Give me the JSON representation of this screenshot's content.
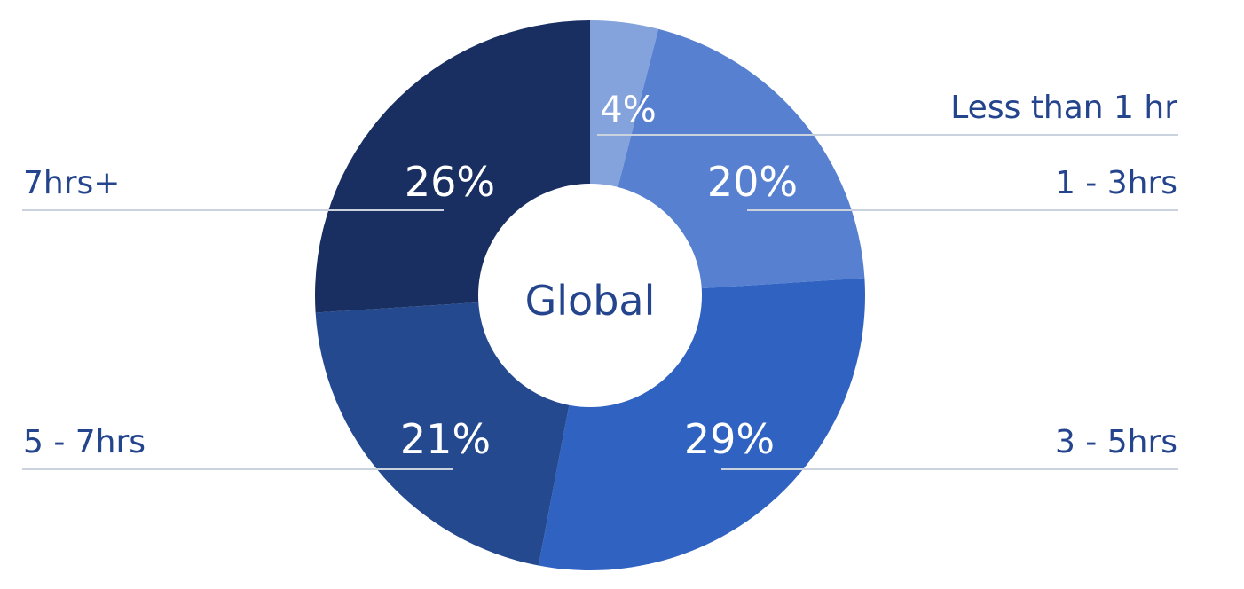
{
  "chart_data": {
    "type": "pie",
    "center_label": "Global",
    "categories": [
      "Less than 1 hr",
      "1 - 3hrs",
      "3 - 5hrs",
      "5 - 7hrs",
      "7hrs+"
    ],
    "values": [
      4,
      20,
      29,
      21,
      26
    ],
    "value_labels": [
      "4%",
      "20%",
      "29%",
      "21%",
      "26%"
    ],
    "colors": [
      "#84a3dc",
      "#5781d0",
      "#2f62c1",
      "#24498f",
      "#1a2f61"
    ],
    "text_color": "#24448d",
    "grid": false,
    "legend": "leader lines to labels on left and right sides"
  }
}
